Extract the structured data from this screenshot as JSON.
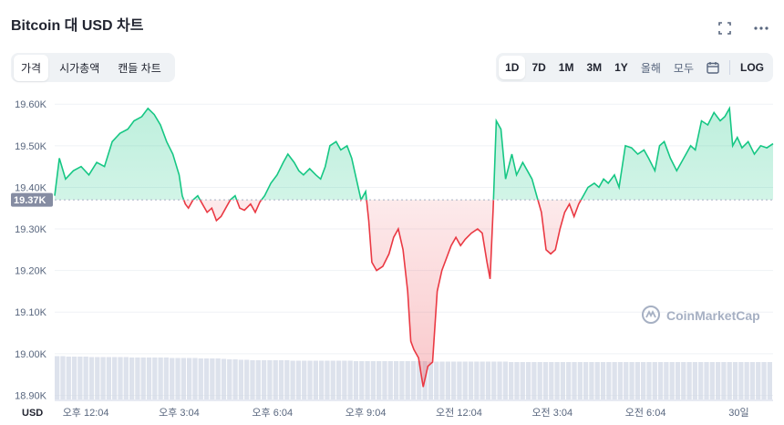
{
  "header": {
    "title": "Bitcoin 대 USD 차트",
    "fullscreen_icon": "fullscreen-icon",
    "more_icon": "more-icon"
  },
  "tabs": [
    {
      "label": "가격",
      "active": true
    },
    {
      "label": "시가총액",
      "active": false
    },
    {
      "label": "캔들 차트",
      "active": false
    }
  ],
  "ranges": [
    {
      "label": "1D",
      "active": true
    },
    {
      "label": "7D",
      "active": false
    },
    {
      "label": "1M",
      "active": false
    },
    {
      "label": "3M",
      "active": false
    },
    {
      "label": "1Y",
      "active": false
    },
    {
      "label": "올해",
      "active": false
    },
    {
      "label": "모두",
      "active": false
    }
  ],
  "log_label": "LOG",
  "calendar_icon": "calendar-icon",
  "watermark": "CoinMarketCap",
  "currency_label": "USD",
  "colors": {
    "up": "#16c784",
    "down": "#ea3943",
    "ref_badge": "#858ca2",
    "volume": "#cfd6e4"
  },
  "chart_data": {
    "type": "area",
    "y_ticks": [
      "19.60K",
      "19.50K",
      "19.40K",
      "19.30K",
      "19.20K",
      "19.10K",
      "19.00K",
      "18.90K"
    ],
    "y_tick_values": [
      19600,
      19500,
      19400,
      19300,
      19200,
      19100,
      19000,
      18900
    ],
    "ylim": [
      18890,
      19640
    ],
    "reference_price": 19370,
    "reference_label": "19.37K",
    "x_ticks": [
      "오후 12:04",
      "오후 3:04",
      "오후 6:04",
      "오후 9:04",
      "오전 12:04",
      "오전 3:04",
      "오전 6:04",
      "30일"
    ],
    "x_tick_hours": [
      1,
      4,
      7,
      10,
      13,
      16,
      19,
      22
    ],
    "xlim_hours": [
      0,
      23.1
    ],
    "price_series": [
      [
        0.0,
        19380
      ],
      [
        0.15,
        19470
      ],
      [
        0.35,
        19420
      ],
      [
        0.6,
        19440
      ],
      [
        0.85,
        19450
      ],
      [
        1.1,
        19430
      ],
      [
        1.35,
        19460
      ],
      [
        1.6,
        19450
      ],
      [
        1.85,
        19510
      ],
      [
        2.1,
        19530
      ],
      [
        2.35,
        19540
      ],
      [
        2.55,
        19560
      ],
      [
        2.8,
        19570
      ],
      [
        3.0,
        19590
      ],
      [
        3.2,
        19575
      ],
      [
        3.4,
        19550
      ],
      [
        3.6,
        19510
      ],
      [
        3.8,
        19480
      ],
      [
        4.0,
        19430
      ],
      [
        4.1,
        19380
      ],
      [
        4.2,
        19360
      ],
      [
        4.3,
        19350
      ],
      [
        4.45,
        19370
      ],
      [
        4.6,
        19380
      ],
      [
        4.75,
        19360
      ],
      [
        4.9,
        19340
      ],
      [
        5.05,
        19350
      ],
      [
        5.2,
        19320
      ],
      [
        5.35,
        19330
      ],
      [
        5.5,
        19350
      ],
      [
        5.65,
        19370
      ],
      [
        5.8,
        19380
      ],
      [
        5.95,
        19350
      ],
      [
        6.1,
        19345
      ],
      [
        6.3,
        19360
      ],
      [
        6.45,
        19340
      ],
      [
        6.6,
        19365
      ],
      [
        6.75,
        19380
      ],
      [
        6.95,
        19410
      ],
      [
        7.15,
        19430
      ],
      [
        7.35,
        19460
      ],
      [
        7.5,
        19480
      ],
      [
        7.7,
        19460
      ],
      [
        7.85,
        19440
      ],
      [
        8.0,
        19430
      ],
      [
        8.2,
        19445
      ],
      [
        8.4,
        19430
      ],
      [
        8.55,
        19420
      ],
      [
        8.7,
        19450
      ],
      [
        8.85,
        19500
      ],
      [
        9.05,
        19510
      ],
      [
        9.2,
        19490
      ],
      [
        9.4,
        19500
      ],
      [
        9.55,
        19470
      ],
      [
        9.7,
        19420
      ],
      [
        9.85,
        19370
      ],
      [
        10.0,
        19390
      ],
      [
        10.1,
        19320
      ],
      [
        10.2,
        19220
      ],
      [
        10.35,
        19200
      ],
      [
        10.55,
        19210
      ],
      [
        10.75,
        19240
      ],
      [
        10.9,
        19280
      ],
      [
        11.05,
        19300
      ],
      [
        11.2,
        19250
      ],
      [
        11.35,
        19150
      ],
      [
        11.45,
        19030
      ],
      [
        11.55,
        19010
      ],
      [
        11.7,
        18990
      ],
      [
        11.85,
        18920
      ],
      [
        12.0,
        18970
      ],
      [
        12.15,
        18980
      ],
      [
        12.3,
        19150
      ],
      [
        12.45,
        19200
      ],
      [
        12.6,
        19230
      ],
      [
        12.75,
        19260
      ],
      [
        12.9,
        19280
      ],
      [
        13.05,
        19260
      ],
      [
        13.2,
        19275
      ],
      [
        13.4,
        19290
      ],
      [
        13.6,
        19300
      ],
      [
        13.75,
        19290
      ],
      [
        13.9,
        19220
      ],
      [
        14.0,
        19180
      ],
      [
        14.1,
        19350
      ],
      [
        14.2,
        19560
      ],
      [
        14.35,
        19540
      ],
      [
        14.5,
        19420
      ],
      [
        14.7,
        19480
      ],
      [
        14.85,
        19430
      ],
      [
        15.05,
        19460
      ],
      [
        15.2,
        19440
      ],
      [
        15.35,
        19420
      ],
      [
        15.5,
        19380
      ],
      [
        15.65,
        19340
      ],
      [
        15.8,
        19250
      ],
      [
        15.95,
        19240
      ],
      [
        16.1,
        19250
      ],
      [
        16.25,
        19300
      ],
      [
        16.4,
        19340
      ],
      [
        16.55,
        19360
      ],
      [
        16.7,
        19330
      ],
      [
        16.85,
        19360
      ],
      [
        17.0,
        19380
      ],
      [
        17.15,
        19400
      ],
      [
        17.35,
        19410
      ],
      [
        17.5,
        19400
      ],
      [
        17.65,
        19420
      ],
      [
        17.8,
        19410
      ],
      [
        18.0,
        19430
      ],
      [
        18.15,
        19400
      ],
      [
        18.35,
        19500
      ],
      [
        18.55,
        19495
      ],
      [
        18.75,
        19480
      ],
      [
        18.95,
        19490
      ],
      [
        19.1,
        19470
      ],
      [
        19.3,
        19440
      ],
      [
        19.45,
        19500
      ],
      [
        19.6,
        19510
      ],
      [
        19.8,
        19470
      ],
      [
        20.0,
        19440
      ],
      [
        20.15,
        19460
      ],
      [
        20.3,
        19480
      ],
      [
        20.45,
        19500
      ],
      [
        20.6,
        19490
      ],
      [
        20.8,
        19560
      ],
      [
        21.0,
        19550
      ],
      [
        21.2,
        19580
      ],
      [
        21.4,
        19560
      ],
      [
        21.55,
        19570
      ],
      [
        21.7,
        19590
      ],
      [
        21.8,
        19500
      ],
      [
        21.95,
        19520
      ],
      [
        22.1,
        19495
      ],
      [
        22.3,
        19510
      ],
      [
        22.5,
        19480
      ],
      [
        22.7,
        19500
      ],
      [
        22.9,
        19495
      ],
      [
        23.1,
        19505
      ]
    ],
    "volume_note": "relative volume bars, 0-1",
    "volume_series": [
      0.95,
      0.95,
      0.94,
      0.94,
      0.94,
      0.94,
      0.93,
      0.93,
      0.93,
      0.93,
      0.93,
      0.93,
      0.93,
      0.92,
      0.92,
      0.92,
      0.92,
      0.92,
      0.92,
      0.92,
      0.91,
      0.91,
      0.91,
      0.91,
      0.91,
      0.9,
      0.9,
      0.9,
      0.9,
      0.89,
      0.88,
      0.88,
      0.87,
      0.87,
      0.86,
      0.86,
      0.86,
      0.86,
      0.86,
      0.86,
      0.86,
      0.85,
      0.85,
      0.85,
      0.85,
      0.85,
      0.85,
      0.85,
      0.85,
      0.85,
      0.85,
      0.85,
      0.84,
      0.84,
      0.84,
      0.84,
      0.84,
      0.84,
      0.84,
      0.84,
      0.84,
      0.84,
      0.84,
      0.84,
      0.84,
      0.83,
      0.83,
      0.83,
      0.83,
      0.83,
      0.83,
      0.83,
      0.83,
      0.83,
      0.83,
      0.83,
      0.83,
      0.83,
      0.83,
      0.82,
      0.82,
      0.82,
      0.82,
      0.82,
      0.82,
      0.82,
      0.82,
      0.82,
      0.82,
      0.82,
      0.82,
      0.82,
      0.82,
      0.82,
      0.82,
      0.82,
      0.82,
      0.82,
      0.82,
      0.82,
      0.82,
      0.82,
      0.82,
      0.82,
      0.82,
      0.82,
      0.82,
      0.82,
      0.82,
      0.82,
      0.82,
      0.82,
      0.82,
      0.82,
      0.82,
      0.82,
      0.82,
      0.82,
      0.82,
      0.82,
      0.82,
      0.82,
      0.82,
      0.82,
      0.82
    ]
  }
}
